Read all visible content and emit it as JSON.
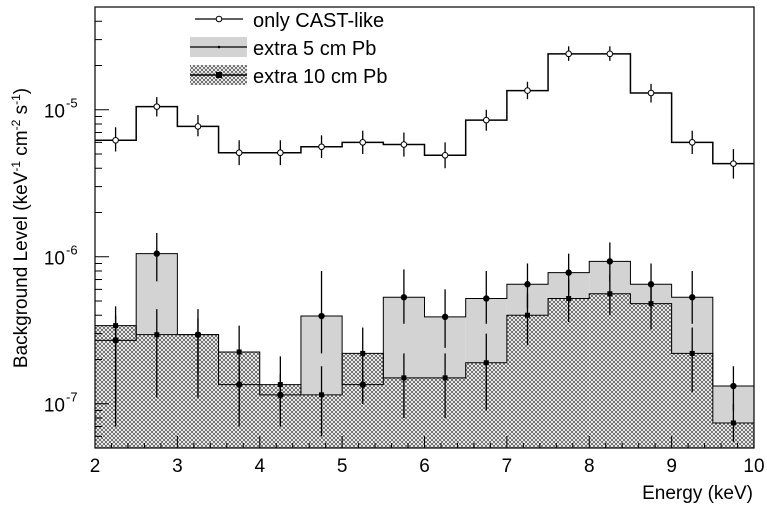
{
  "chart_data": {
    "type": "histogram",
    "xlabel": "Energy (keV)",
    "ylabel": "Background Level (keV",
    "ylabel_exp1": "-1",
    "ylabel_mid": " cm",
    "ylabel_exp2": "-2",
    "ylabel_mid2": " s",
    "ylabel_exp3": "-1",
    "ylabel_end": ")",
    "xlim": [
      2,
      10
    ],
    "ylim": [
      5e-08,
      5e-05
    ],
    "yscale": "log",
    "x_ticks": [
      "2",
      "3",
      "4",
      "5",
      "6",
      "7",
      "8",
      "9",
      "10"
    ],
    "y_ticks": [
      {
        "base": "10",
        "exp": "-5",
        "value": 1e-05
      },
      {
        "base": "10",
        "exp": "-6",
        "value": 1e-06
      },
      {
        "base": "10",
        "exp": "-7",
        "value": 1e-07
      }
    ],
    "bin_edges": [
      2.0,
      2.5,
      3.0,
      3.5,
      4.0,
      4.5,
      5.0,
      5.5,
      6.0,
      6.5,
      7.0,
      7.5,
      8.0,
      8.5,
      9.0,
      9.5,
      10.0
    ],
    "legend_position": "top-left",
    "series": [
      {
        "name": "only CAST-like",
        "style": "open-marker-line",
        "values": [
          6.2e-06,
          1.05e-05,
          7.7e-06,
          5.1e-06,
          5.1e-06,
          5.6e-06,
          6e-06,
          5.8e-06,
          4.9e-06,
          8.5e-06,
          1.35e-05,
          2.4e-05,
          2.4e-05,
          1.3e-05,
          6e-06,
          4.3e-06
        ],
        "errors": [
          [
            5.2e-06,
            7.6e-06
          ],
          [
            9e-06,
            1.22e-05
          ],
          [
            6.6e-06,
            9.2e-06
          ],
          [
            4.2e-06,
            6.2e-06
          ],
          [
            4.2e-06,
            6.2e-06
          ],
          [
            4.7e-06,
            6.7e-06
          ],
          [
            5e-06,
            7.2e-06
          ],
          [
            4.8e-06,
            7e-06
          ],
          [
            4e-06,
            6e-06
          ],
          [
            7.2e-06,
            1e-05
          ],
          [
            1.18e-05,
            1.55e-05
          ],
          [
            2.15e-05,
            2.7e-05
          ],
          [
            2.15e-05,
            2.7e-05
          ],
          [
            1.12e-05,
            1.5e-05
          ],
          [
            5e-06,
            7.2e-06
          ],
          [
            3.4e-06,
            5.4e-06
          ]
        ]
      },
      {
        "name": "extra 5 cm Pb",
        "style": "filled-gray",
        "color": "#d3d3d3",
        "values": [
          2.7e-07,
          1.05e-06,
          2.95e-07,
          1.35e-07,
          1.15e-07,
          3.95e-07,
          1.35e-07,
          5.3e-07,
          3.9e-07,
          5.2e-07,
          6.5e-07,
          7.8e-07,
          9.3e-07,
          6.5e-07,
          5.3e-07,
          1.32e-07
        ],
        "errors": [
          [
            1e-07,
            4e-07
          ],
          [
            6.8e-07,
            1.45e-06
          ],
          [
            1.6e-07,
            3.8e-07
          ],
          [
            9e-08,
            1.8e-07
          ],
          [
            9e-08,
            1.6e-07
          ],
          [
            2.2e-07,
            8e-07
          ],
          [
            1e-07,
            1.7e-07
          ],
          [
            3.5e-07,
            8.2e-07
          ],
          [
            2.4e-07,
            6e-07
          ],
          [
            3.5e-07,
            8e-07
          ],
          [
            4.5e-07,
            9e-07
          ],
          [
            5.6e-07,
            1.05e-06
          ],
          [
            6.8e-07,
            1.25e-06
          ],
          [
            4.5e-07,
            9e-07
          ],
          [
            3.5e-07,
            8e-07
          ],
          [
            9e-08,
            1.8e-07
          ]
        ]
      },
      {
        "name": "extra 10 cm Pb",
        "style": "crosshatch",
        "values": [
          3.4e-07,
          2.95e-07,
          2.95e-07,
          2.25e-07,
          1.35e-07,
          1.15e-07,
          2.2e-07,
          1.5e-07,
          1.5e-07,
          1.9e-07,
          4e-07,
          5.2e-07,
          5.6e-07,
          4.8e-07,
          2.2e-07,
          7.4e-08
        ],
        "errors": [
          [
            7e-08,
            4.6e-07
          ],
          [
            1.1e-07,
            4.4e-07
          ],
          [
            1.1e-07,
            4.4e-07
          ],
          [
            7e-08,
            3.4e-07
          ],
          [
            7e-08,
            2.1e-07
          ],
          [
            6e-08,
            1.8e-07
          ],
          [
            1e-07,
            3.3e-07
          ],
          [
            8e-08,
            2.2e-07
          ],
          [
            8e-08,
            2.2e-07
          ],
          [
            9e-08,
            3e-07
          ],
          [
            2.5e-07,
            5.6e-07
          ],
          [
            3.6e-07,
            7e-07
          ],
          [
            4e-07,
            7.6e-07
          ],
          [
            3.2e-07,
            6.5e-07
          ],
          [
            1.2e-07,
            3.3e-07
          ],
          [
            5.5e-08,
            1e-07
          ]
        ]
      }
    ]
  }
}
